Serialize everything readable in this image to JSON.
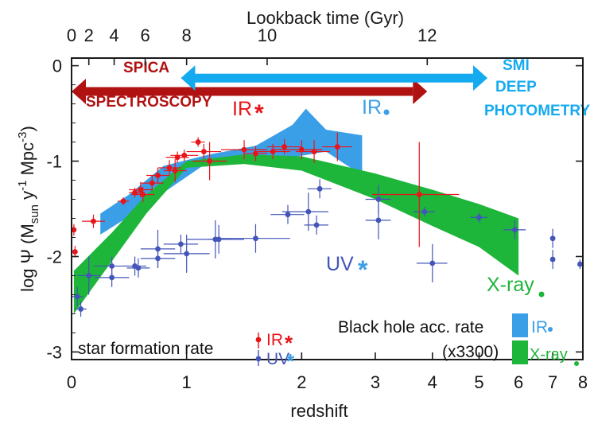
{
  "chart_data": {
    "type": "scatter",
    "title": "",
    "xlabel": "redshift",
    "ylabel": "log Ψ (M sun y⁻¹ Mpc⁻³)",
    "ylabel_parts": {
      "pre": "log Ψ (M",
      "sub": "sun",
      "mid": " y",
      "sup1": "-1",
      "post": " Mpc",
      "sup2": "-3",
      "close": ")"
    },
    "top_axis_label": "Lookback time (Gyr)",
    "xlim": [
      0,
      8
    ],
    "ylim": [
      -3.08,
      0.08
    ],
    "x_ticks": [
      "0",
      "1",
      "2",
      "3",
      "4",
      "5",
      "6",
      "7",
      "8"
    ],
    "x_tick_values": [
      0,
      1,
      2,
      3,
      4,
      5,
      6,
      7,
      8
    ],
    "y_ticks": [
      "0",
      "-1",
      "-2",
      "-3"
    ],
    "y_tick_values": [
      0,
      -1,
      -2,
      -3
    ],
    "top_ticks": [
      "0",
      "2",
      "4",
      "6",
      "8",
      "10",
      "12"
    ],
    "top_tick_redshift": [
      0,
      0.15,
      0.37,
      0.64,
      1.0,
      1.7,
      3.9
    ],
    "colors": {
      "ir_sfr": "#e8141a",
      "uv_sfr": "#4355b8",
      "ir_bh": "#3b9fe8",
      "xray_bh": "#1db53a",
      "spica": "#b01212",
      "smi": "#14aaf0",
      "axis": "#1a1a1a"
    },
    "arrows": [
      {
        "name": "SPICA",
        "label_top": "SPICA",
        "label_bottom": "SPECTROSCOPY",
        "z_from": 0.0,
        "z_to": 3.9,
        "y": -0.27,
        "color": "spica"
      },
      {
        "name": "SMI",
        "label_top": "SMI",
        "label_mid": "DEEP",
        "label_bottom": "PHOTOMETRY",
        "z_from": 0.95,
        "z_to": 5.2,
        "y": -0.13,
        "color": "smi"
      }
    ],
    "series": [
      {
        "name": "IR",
        "label": "IR",
        "symbol": "*",
        "color": "ir_sfr",
        "points": [
          {
            "z": 0.02,
            "y": -1.72,
            "ex": 0.02,
            "ey": 0.06
          },
          {
            "z": 0.03,
            "y": -1.95,
            "ex": 0.02,
            "ey": 0.06
          },
          {
            "z": 0.19,
            "y": -1.63,
            "ex": 0.1,
            "ey": 0.07
          },
          {
            "z": 0.45,
            "y": -1.42,
            "ex": 0.05,
            "ey": 0.04
          },
          {
            "z": 0.55,
            "y": -1.33,
            "ex": 0.05,
            "ey": 0.05
          },
          {
            "z": 0.6,
            "y": -1.3,
            "ex": 0.1,
            "ey": 0.08
          },
          {
            "z": 0.62,
            "y": -1.35,
            "ex": 0.1,
            "ey": 0.08
          },
          {
            "z": 0.7,
            "y": -1.23,
            "ex": 0.1,
            "ey": 0.08
          },
          {
            "z": 0.75,
            "y": -1.15,
            "ex": 0.1,
            "ey": 0.08
          },
          {
            "z": 0.85,
            "y": -1.07,
            "ex": 0.1,
            "ey": 0.08
          },
          {
            "z": 0.9,
            "y": -1.1,
            "ex": 0.1,
            "ey": 0.12
          },
          {
            "z": 0.92,
            "y": -0.96,
            "ex": 0.1,
            "ey": 0.06
          },
          {
            "z": 0.98,
            "y": -0.94,
            "ex": 0.12,
            "ey": 0.06
          },
          {
            "z": 1.1,
            "y": -0.8,
            "ex": 0.06,
            "ey": 0.05
          },
          {
            "z": 1.15,
            "y": -0.9,
            "ex": 0.15,
            "ey": 0.08
          },
          {
            "z": 1.2,
            "y": -1.0,
            "ex": 0.15,
            "ey": 0.2
          },
          {
            "z": 1.5,
            "y": -0.88,
            "ex": 0.2,
            "ey": 0.1
          },
          {
            "z": 1.6,
            "y": -0.92,
            "ex": 0.1,
            "ey": 0.08
          },
          {
            "z": 1.75,
            "y": -0.9,
            "ex": 0.15,
            "ey": 0.08
          },
          {
            "z": 1.85,
            "y": -0.85,
            "ex": 0.15,
            "ey": 0.08
          },
          {
            "z": 2.0,
            "y": -0.88,
            "ex": 0.25,
            "ey": 0.1
          },
          {
            "z": 2.15,
            "y": -0.9,
            "ex": 0.2,
            "ey": 0.12
          },
          {
            "z": 2.45,
            "y": -0.85,
            "ex": 0.2,
            "ey": 0.15
          },
          {
            "z": 3.75,
            "y": -1.35,
            "ex": 0.8,
            "ey": 0.55
          }
        ]
      },
      {
        "name": "UV",
        "label": "UV",
        "symbol": "*",
        "color": "uv_sfr",
        "points": [
          {
            "z": 0.05,
            "y": -2.42,
            "ex": 0.05,
            "ey": 0.1
          },
          {
            "z": 0.08,
            "y": -2.55,
            "ex": 0.05,
            "ey": 0.08
          },
          {
            "z": 0.15,
            "y": -2.2,
            "ex": 0.1,
            "ey": 0.2
          },
          {
            "z": 0.35,
            "y": -2.1,
            "ex": 0.15,
            "ey": 0.1
          },
          {
            "z": 0.35,
            "y": -2.22,
            "ex": 0.15,
            "ey": 0.1
          },
          {
            "z": 0.55,
            "y": -2.1,
            "ex": 0.1,
            "ey": 0.1
          },
          {
            "z": 0.58,
            "y": -2.12,
            "ex": 0.1,
            "ey": 0.1
          },
          {
            "z": 0.75,
            "y": -1.92,
            "ex": 0.15,
            "ey": 0.2
          },
          {
            "z": 0.75,
            "y": -2.02,
            "ex": 0.15,
            "ey": 0.1
          },
          {
            "z": 0.95,
            "y": -1.87,
            "ex": 0.15,
            "ey": 0.1
          },
          {
            "z": 1.0,
            "y": -1.97,
            "ex": 0.2,
            "ey": 0.2
          },
          {
            "z": 1.25,
            "y": -1.82,
            "ex": 0.25,
            "ey": 0.2
          },
          {
            "z": 1.28,
            "y": -1.82,
            "ex": 0.1,
            "ey": 0.15
          },
          {
            "z": 1.6,
            "y": -1.81,
            "ex": 0.3,
            "ey": 0.15
          },
          {
            "z": 1.88,
            "y": -1.56,
            "ex": 0.15,
            "ey": 0.1
          },
          {
            "z": 2.08,
            "y": -1.53,
            "ex": 0.25,
            "ey": 0.2
          },
          {
            "z": 2.18,
            "y": -1.67,
            "ex": 0.15,
            "ey": 0.1
          },
          {
            "z": 2.22,
            "y": -1.29,
            "ex": 0.15,
            "ey": 0.1
          },
          {
            "z": 3.05,
            "y": -1.4,
            "ex": 0.2,
            "ey": 0.15
          },
          {
            "z": 3.05,
            "y": -1.62,
            "ex": 0.2,
            "ey": 0.2
          },
          {
            "z": 3.85,
            "y": -1.53,
            "ex": 0.2,
            "ey": 0.05
          },
          {
            "z": 4.0,
            "y": -2.07,
            "ex": 0.3,
            "ey": 0.2
          },
          {
            "z": 5.0,
            "y": -1.59,
            "ex": 0.2,
            "ey": 0.05
          },
          {
            "z": 5.9,
            "y": -1.72,
            "ex": 0.3,
            "ey": 0.1
          },
          {
            "z": 7.0,
            "y": -1.81,
            "ex": 0.05,
            "ey": 0.1
          },
          {
            "z": 7.0,
            "y": -2.03,
            "ex": 0.05,
            "ey": 0.1
          },
          {
            "z": 7.9,
            "y": -2.08,
            "ex": 0.05,
            "ey": 0.05
          }
        ]
      }
    ],
    "bands": [
      {
        "name": "IR",
        "label": "IR",
        "symbol": "•",
        "color": "ir_bh",
        "upper": [
          [
            0.25,
            -1.55
          ],
          [
            0.5,
            -1.35
          ],
          [
            0.8,
            -1.05
          ],
          [
            1.2,
            -0.93
          ],
          [
            1.6,
            -0.84
          ],
          [
            1.92,
            -0.62
          ],
          [
            2.05,
            -0.45
          ],
          [
            2.3,
            -0.67
          ],
          [
            2.8,
            -0.73
          ]
        ],
        "lower": [
          [
            2.8,
            -1.15
          ],
          [
            2.3,
            -0.9
          ],
          [
            1.92,
            -0.96
          ],
          [
            1.6,
            -0.95
          ],
          [
            1.2,
            -1.0
          ],
          [
            0.8,
            -1.33
          ],
          [
            0.5,
            -1.58
          ],
          [
            0.25,
            -1.77
          ]
        ]
      },
      {
        "name": "X-ray",
        "label": "X-ray",
        "symbol": "•",
        "color": "xray_bh",
        "upper": [
          [
            0.02,
            -2.15
          ],
          [
            0.35,
            -1.75
          ],
          [
            0.65,
            -1.35
          ],
          [
            1.0,
            -1.0
          ],
          [
            1.5,
            -0.93
          ],
          [
            2.0,
            -0.95
          ],
          [
            3.0,
            -1.13
          ],
          [
            4.0,
            -1.3
          ],
          [
            5.0,
            -1.45
          ],
          [
            6.0,
            -1.6
          ]
        ],
        "lower": [
          [
            6.0,
            -2.2
          ],
          [
            5.0,
            -1.9
          ],
          [
            4.0,
            -1.68
          ],
          [
            3.0,
            -1.4
          ],
          [
            2.0,
            -1.1
          ],
          [
            1.5,
            -1.03
          ],
          [
            1.0,
            -1.07
          ],
          [
            0.65,
            -1.55
          ],
          [
            0.35,
            -2.05
          ],
          [
            0.02,
            -2.6
          ]
        ]
      }
    ],
    "annotations": {
      "ir_sfr": "IR",
      "ir_bh": "IR",
      "uv_sfr": "UV",
      "xray_bh": "X-ray",
      "star_symbol": "*",
      "dot_symbol": "•"
    },
    "legend": {
      "sfr_title": "star formation rate",
      "sfr_ir": "IR",
      "sfr_uv": "UV",
      "bh_title": "Black hole acc. rate",
      "bh_scale": "(x3300)",
      "bh_ir": "IR",
      "bh_xray": "X-ray",
      "placement": "bottom"
    }
  }
}
